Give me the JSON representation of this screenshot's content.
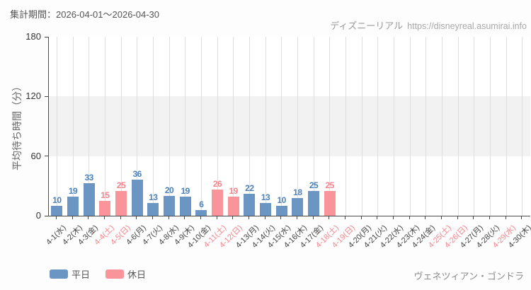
{
  "header": {
    "title": "集計期間：2026-04-01～2026-04-30",
    "source_name": "ディズニーリアル",
    "source_url": "https://disneyreal.asumirai.info"
  },
  "chart_data": {
    "type": "bar",
    "title": "",
    "xlabel": "",
    "ylabel": "平均待ち時間（分）",
    "ylim": [
      0,
      180
    ],
    "yticks": [
      0,
      60,
      120,
      180
    ],
    "grid": "vertical gridline per day; gray horizontal band between 60 and 120",
    "legend_position": "bottom-left",
    "legend": [
      {
        "label": "平日",
        "type": "weekday"
      },
      {
        "label": "休日",
        "type": "holiday"
      }
    ],
    "categories": [
      "4-1(水)",
      "4-2(木)",
      "4-3(金)",
      "4-4(土)",
      "4-5(日)",
      "4-6(月)",
      "4-7(火)",
      "4-8(水)",
      "4-9(木)",
      "4-10(金)",
      "4-11(土)",
      "4-12(日)",
      "4-13(月)",
      "4-14(火)",
      "4-15(水)",
      "4-16(木)",
      "4-17(金)",
      "4-18(土)",
      "4-19(日)",
      "4-20(月)",
      "4-21(火)",
      "4-22(水)",
      "4-23(木)",
      "4-24(金)",
      "4-25(土)",
      "4-26(日)",
      "4-27(月)",
      "4-28(火)",
      "4-29(水)",
      "4-30(木)"
    ],
    "points": [
      {
        "label": "4-1(水)",
        "value": 10,
        "type": "weekday"
      },
      {
        "label": "4-2(木)",
        "value": 19,
        "type": "weekday"
      },
      {
        "label": "4-3(金)",
        "value": 33,
        "type": "weekday"
      },
      {
        "label": "4-4(土)",
        "value": 15,
        "type": "holiday"
      },
      {
        "label": "4-5(日)",
        "value": 25,
        "type": "holiday"
      },
      {
        "label": "4-6(月)",
        "value": 36,
        "type": "weekday"
      },
      {
        "label": "4-7(火)",
        "value": 13,
        "type": "weekday"
      },
      {
        "label": "4-8(水)",
        "value": 20,
        "type": "weekday"
      },
      {
        "label": "4-9(木)",
        "value": 19,
        "type": "weekday"
      },
      {
        "label": "4-10(金)",
        "value": 6,
        "type": "weekday"
      },
      {
        "label": "4-11(土)",
        "value": 26,
        "type": "holiday"
      },
      {
        "label": "4-12(日)",
        "value": 19,
        "type": "holiday"
      },
      {
        "label": "4-13(月)",
        "value": 22,
        "type": "weekday"
      },
      {
        "label": "4-14(火)",
        "value": 13,
        "type": "weekday"
      },
      {
        "label": "4-15(水)",
        "value": 10,
        "type": "weekday"
      },
      {
        "label": "4-16(木)",
        "value": 18,
        "type": "weekday"
      },
      {
        "label": "4-17(金)",
        "value": 25,
        "type": "weekday"
      },
      {
        "label": "4-18(土)",
        "value": 25,
        "type": "holiday"
      },
      {
        "label": "4-19(日)",
        "value": null,
        "type": "holiday"
      },
      {
        "label": "4-20(月)",
        "value": null,
        "type": "weekday"
      },
      {
        "label": "4-21(火)",
        "value": null,
        "type": "weekday"
      },
      {
        "label": "4-22(水)",
        "value": null,
        "type": "weekday"
      },
      {
        "label": "4-23(木)",
        "value": null,
        "type": "weekday"
      },
      {
        "label": "4-24(金)",
        "value": null,
        "type": "weekday"
      },
      {
        "label": "4-25(土)",
        "value": null,
        "type": "holiday"
      },
      {
        "label": "4-26(日)",
        "value": null,
        "type": "holiday"
      },
      {
        "label": "4-27(月)",
        "value": null,
        "type": "weekday"
      },
      {
        "label": "4-28(火)",
        "value": null,
        "type": "weekday"
      },
      {
        "label": "4-29(水)",
        "value": null,
        "type": "holiday"
      },
      {
        "label": "4-30(木)",
        "value": null,
        "type": "weekday"
      }
    ]
  },
  "colors": {
    "weekday_bar": "#6b95c3",
    "holiday_bar": "#f9949b",
    "weekday_value_text": "#4d82b8",
    "holiday_value_text": "#f8838c",
    "weekday_tick_text": "#444444",
    "holiday_tick_text": "#f5868d"
  },
  "footer": {
    "attraction": "ヴェネツィアン・ゴンドラ"
  }
}
